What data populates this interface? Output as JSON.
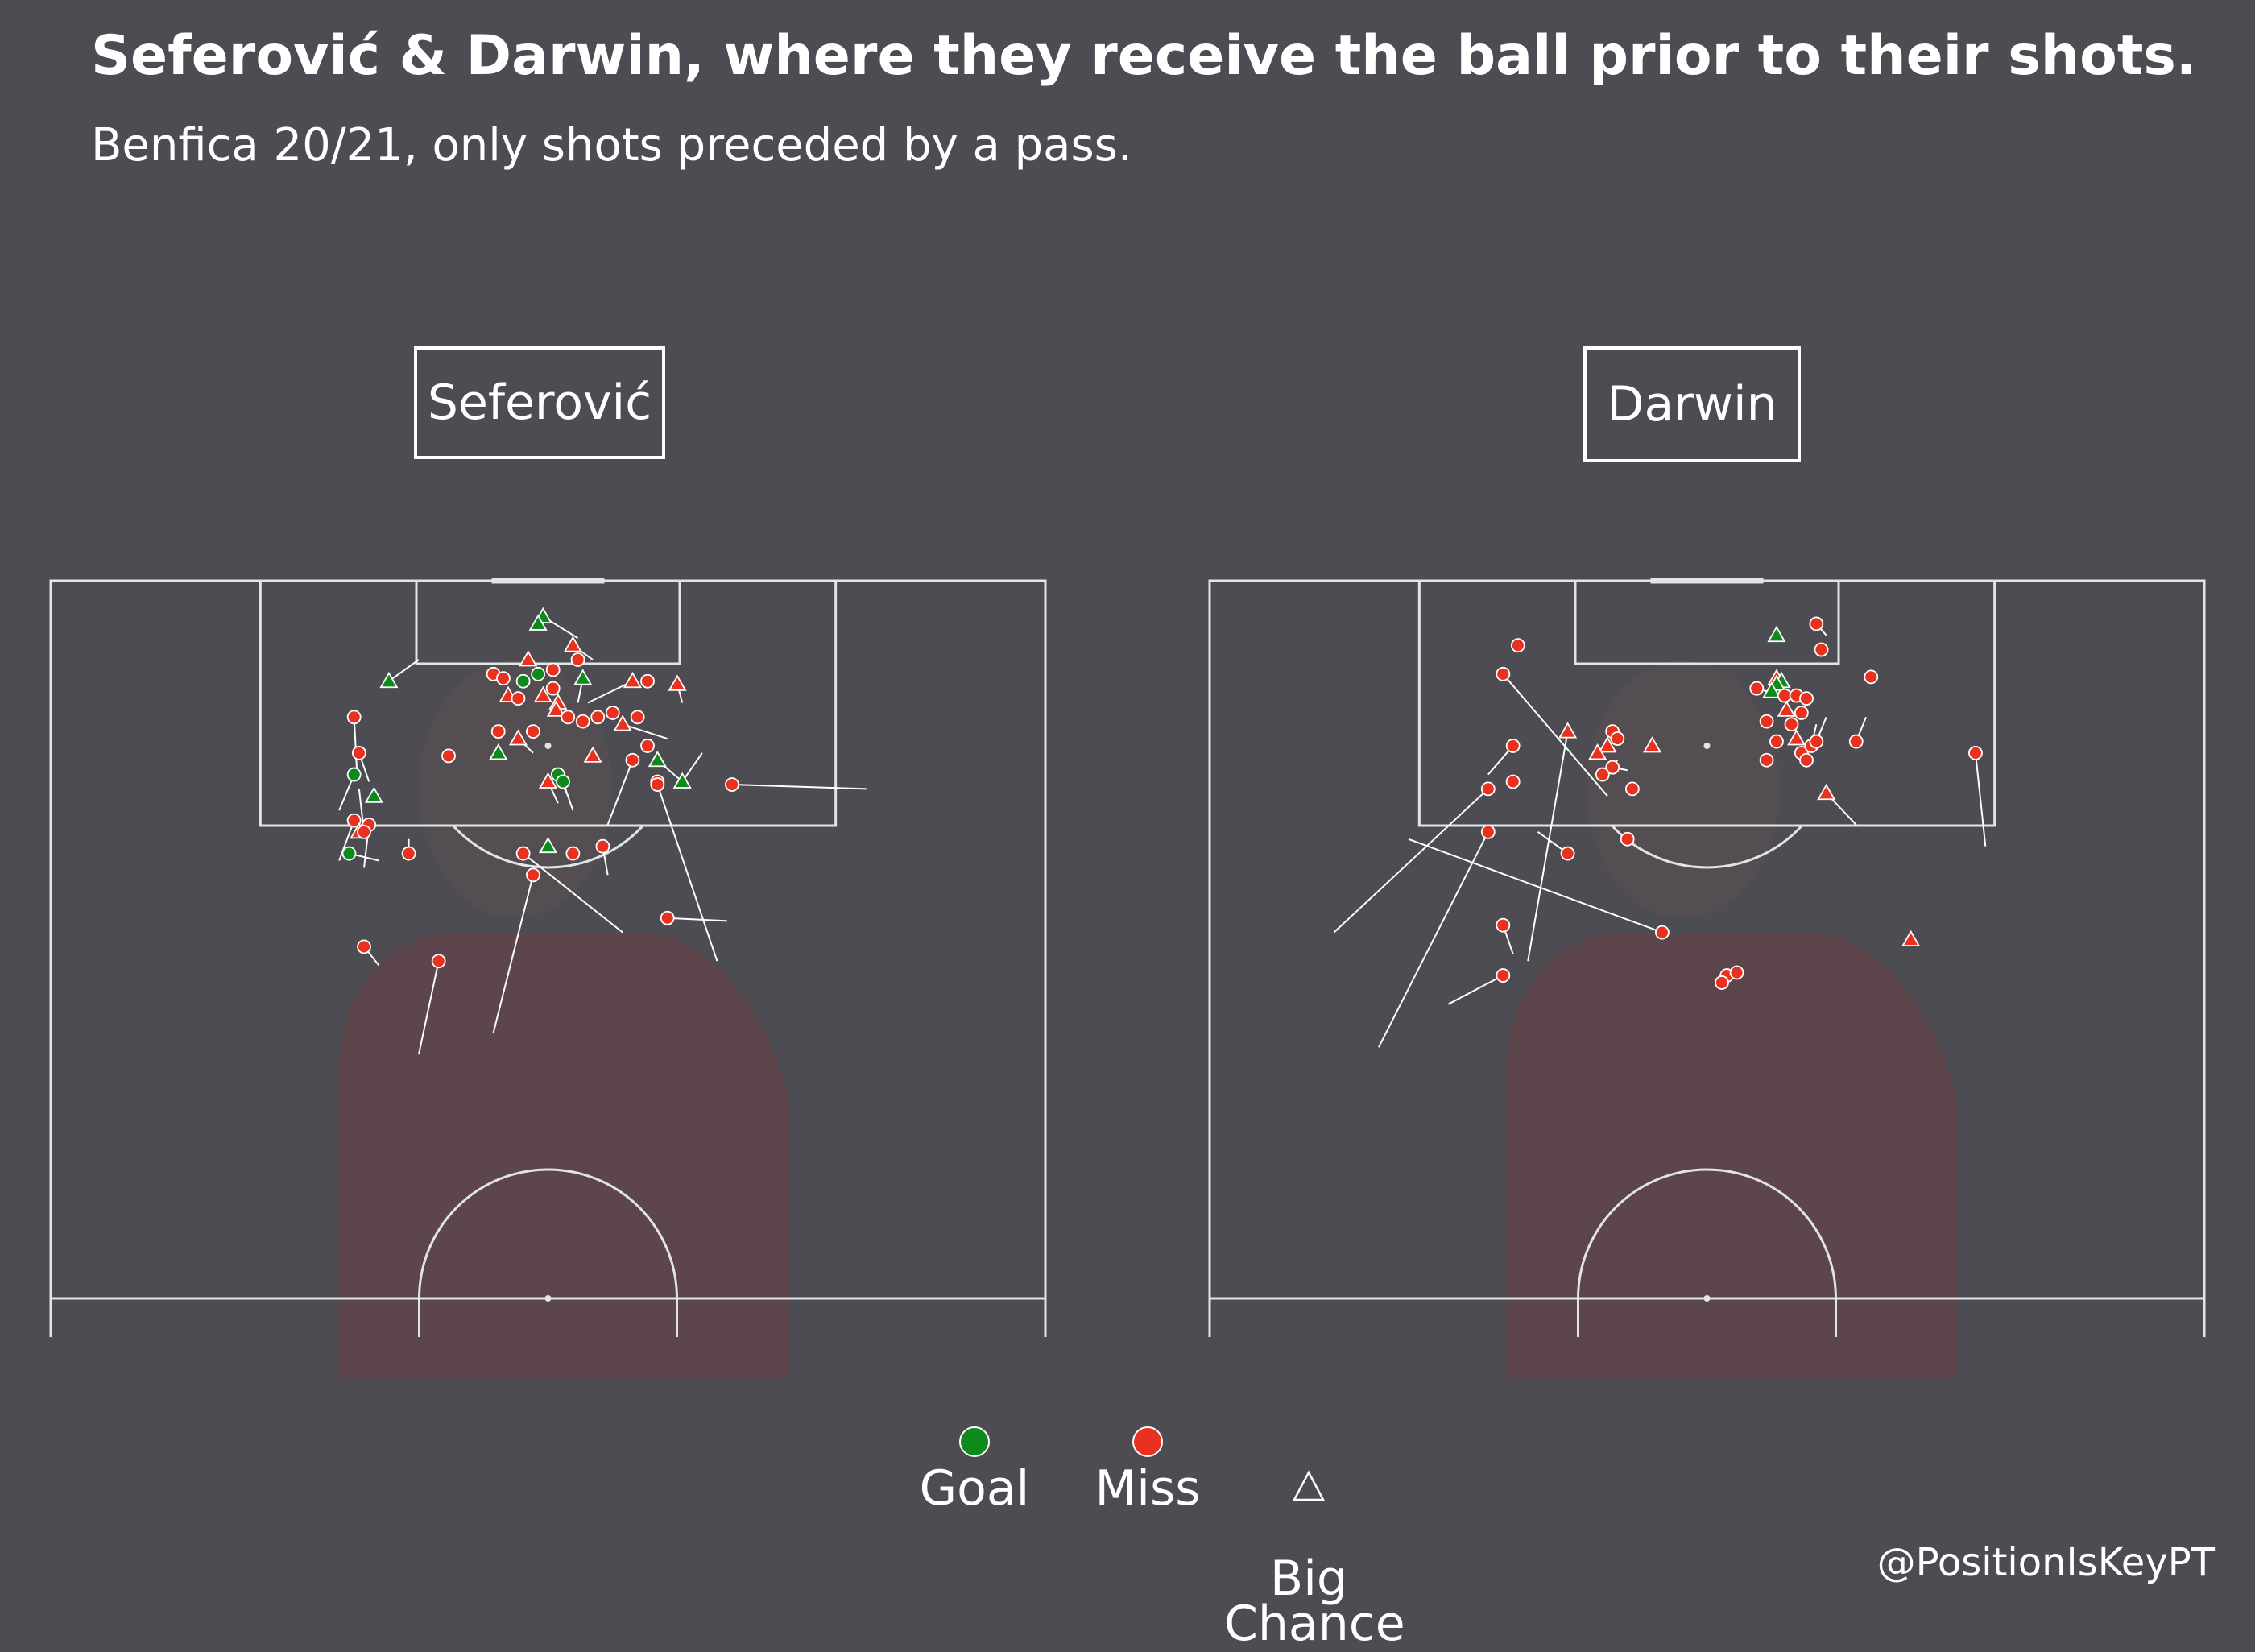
{
  "title": "Seferović & Darwin, where they receive the ball prior to their shots.",
  "subtitle": "Benfica 20/21, only shots preceded by a pass.",
  "footer": "@PositionIsKeyPT",
  "colors": {
    "background": "#4d4c52",
    "pitch_lines": "#dfe6e4",
    "goal": "#0d8a1b",
    "miss": "#e8321f",
    "marker_edge": "#ffffff",
    "shirt": "#6a3f45"
  },
  "legend": [
    {
      "key": "goal",
      "label": "Goal",
      "marker": "circle",
      "color": "#0d8a1b"
    },
    {
      "key": "miss",
      "label": "Miss",
      "marker": "circle",
      "color": "#e8321f"
    },
    {
      "key": "big_chance",
      "label": "Big\nChance",
      "marker": "triangle-outline",
      "color": "#ffffff"
    }
  ],
  "chart_data": [
    {
      "type": "scatter",
      "title": "Seferović",
      "xlim": [
        0,
        100
      ],
      "ylim": [
        50,
        100
      ],
      "points": [
        {
          "x": 49.5,
          "y": 97.5,
          "x2": 53.0,
          "y2": 96.0,
          "outcome": "goal",
          "big_chance": true
        },
        {
          "x": 49.0,
          "y": 97.0,
          "outcome": "goal",
          "big_chance": true
        },
        {
          "x": 52.5,
          "y": 95.5,
          "x2": 54.5,
          "y2": 94.5,
          "outcome": "miss",
          "big_chance": true
        },
        {
          "x": 53.0,
          "y": 94.5,
          "outcome": "miss",
          "big_chance": false
        },
        {
          "x": 34.0,
          "y": 93.0,
          "x2": 37.0,
          "y2": 94.5,
          "outcome": "goal",
          "big_chance": true
        },
        {
          "x": 44.5,
          "y": 93.5,
          "outcome": "miss",
          "big_chance": false
        },
        {
          "x": 45.5,
          "y": 93.2,
          "outcome": "miss",
          "big_chance": false
        },
        {
          "x": 47.5,
          "y": 93.0,
          "outcome": "goal",
          "big_chance": false
        },
        {
          "x": 49.0,
          "y": 93.5,
          "outcome": "goal",
          "big_chance": false
        },
        {
          "x": 50.5,
          "y": 93.8,
          "outcome": "miss",
          "big_chance": false
        },
        {
          "x": 53.5,
          "y": 93.2,
          "x2": 53.0,
          "y2": 91.5,
          "outcome": "goal",
          "big_chance": true
        },
        {
          "x": 48.0,
          "y": 94.5,
          "outcome": "miss",
          "big_chance": true
        },
        {
          "x": 58.5,
          "y": 93.0,
          "x2": 54.0,
          "y2": 91.5,
          "outcome": "miss",
          "big_chance": true
        },
        {
          "x": 60.0,
          "y": 93.0,
          "outcome": "miss",
          "big_chance": false
        },
        {
          "x": 63.0,
          "y": 92.8,
          "x2": 63.5,
          "y2": 91.5,
          "outcome": "miss",
          "big_chance": true
        },
        {
          "x": 46.0,
          "y": 92.0,
          "outcome": "miss",
          "big_chance": true
        },
        {
          "x": 47.0,
          "y": 91.8,
          "outcome": "miss",
          "big_chance": false
        },
        {
          "x": 49.5,
          "y": 92.0,
          "outcome": "miss",
          "big_chance": true
        },
        {
          "x": 50.5,
          "y": 92.5,
          "outcome": "miss",
          "big_chance": false
        },
        {
          "x": 51.0,
          "y": 91.5,
          "outcome": "miss",
          "big_chance": true
        },
        {
          "x": 50.8,
          "y": 91.0,
          "outcome": "miss",
          "big_chance": true
        },
        {
          "x": 52.0,
          "y": 90.5,
          "outcome": "miss",
          "big_chance": false
        },
        {
          "x": 53.5,
          "y": 90.2,
          "outcome": "miss",
          "big_chance": false
        },
        {
          "x": 55.0,
          "y": 90.5,
          "outcome": "miss",
          "big_chance": false
        },
        {
          "x": 56.5,
          "y": 90.8,
          "outcome": "miss",
          "big_chance": false
        },
        {
          "x": 57.5,
          "y": 90.0,
          "x2": 62.0,
          "y2": 89.0,
          "outcome": "miss",
          "big_chance": true
        },
        {
          "x": 59.0,
          "y": 90.5,
          "outcome": "miss",
          "big_chance": false
        },
        {
          "x": 45.0,
          "y": 89.5,
          "outcome": "miss",
          "big_chance": false
        },
        {
          "x": 47.0,
          "y": 89.0,
          "x2": 48.5,
          "y2": 88.0,
          "outcome": "miss",
          "big_chance": true
        },
        {
          "x": 48.5,
          "y": 89.5,
          "outcome": "miss",
          "big_chance": false
        },
        {
          "x": 45.0,
          "y": 88.0,
          "outcome": "goal",
          "big_chance": true
        },
        {
          "x": 60.0,
          "y": 88.5,
          "outcome": "miss",
          "big_chance": false
        },
        {
          "x": 58.5,
          "y": 87.5,
          "x2": 56.0,
          "y2": 83.0,
          "outcome": "miss",
          "big_chance": false
        },
        {
          "x": 30.5,
          "y": 90.5,
          "x2": 30.8,
          "y2": 86.5,
          "outcome": "miss",
          "big_chance": false
        },
        {
          "x": 31.0,
          "y": 88.0,
          "x2": 32.0,
          "y2": 86.0,
          "outcome": "miss",
          "big_chance": false
        },
        {
          "x": 40.0,
          "y": 87.8,
          "outcome": "miss",
          "big_chance": false
        },
        {
          "x": 30.5,
          "y": 86.5,
          "x2": 29.0,
          "y2": 84.0,
          "outcome": "goal",
          "big_chance": false
        },
        {
          "x": 51.0,
          "y": 86.5,
          "x2": 52.0,
          "y2": 85.0,
          "outcome": "goal",
          "big_chance": false
        },
        {
          "x": 51.5,
          "y": 86.0,
          "x2": 52.5,
          "y2": 84.0,
          "outcome": "goal",
          "big_chance": false
        },
        {
          "x": 50.0,
          "y": 86.0,
          "x2": 51.0,
          "y2": 84.5,
          "outcome": "miss",
          "big_chance": true
        },
        {
          "x": 54.5,
          "y": 87.8,
          "outcome": "miss",
          "big_chance": true
        },
        {
          "x": 61.0,
          "y": 87.5,
          "x2": 63.5,
          "y2": 86.0,
          "outcome": "goal",
          "big_chance": true
        },
        {
          "x": 61.0,
          "y": 86.0,
          "outcome": "miss",
          "big_chance": false
        },
        {
          "x": 63.5,
          "y": 86.0,
          "x2": 65.5,
          "y2": 88.0,
          "outcome": "goal",
          "big_chance": true
        },
        {
          "x": 68.5,
          "y": 85.8,
          "x2": 82.0,
          "y2": 85.5,
          "outcome": "miss",
          "big_chance": false
        },
        {
          "x": 61.0,
          "y": 85.8,
          "x2": 67.0,
          "y2": 73.5,
          "outcome": "miss",
          "big_chance": false
        },
        {
          "x": 32.5,
          "y": 85.0,
          "outcome": "goal",
          "big_chance": true
        },
        {
          "x": 30.5,
          "y": 83.3,
          "x2": 29.0,
          "y2": 80.5,
          "outcome": "miss",
          "big_chance": false
        },
        {
          "x": 32.0,
          "y": 83.0,
          "x2": 31.5,
          "y2": 80.0,
          "outcome": "miss",
          "big_chance": false
        },
        {
          "x": 31.0,
          "y": 82.5,
          "outcome": "miss",
          "big_chance": true
        },
        {
          "x": 30.0,
          "y": 81.0,
          "x2": 33.0,
          "y2": 80.5,
          "outcome": "goal",
          "big_chance": false
        },
        {
          "x": 36.0,
          "y": 81.0,
          "x2": 36.0,
          "y2": 82.0,
          "outcome": "miss",
          "big_chance": false
        },
        {
          "x": 50.0,
          "y": 81.5,
          "outcome": "goal",
          "big_chance": true
        },
        {
          "x": 52.5,
          "y": 81.0,
          "outcome": "miss",
          "big_chance": false
        },
        {
          "x": 55.5,
          "y": 81.5,
          "x2": 56.0,
          "y2": 79.5,
          "outcome": "miss",
          "big_chance": false
        },
        {
          "x": 47.5,
          "y": 81.0,
          "x2": 57.5,
          "y2": 75.5,
          "outcome": "miss",
          "big_chance": false
        },
        {
          "x": 48.5,
          "y": 79.5,
          "x2": 44.5,
          "y2": 68.5,
          "outcome": "miss",
          "big_chance": false
        },
        {
          "x": 31.5,
          "y": 82.5,
          "x2": 31.0,
          "y2": 85.5,
          "outcome": "miss",
          "big_chance": false
        },
        {
          "x": 62.0,
          "y": 76.5,
          "x2": 68.0,
          "y2": 76.3,
          "outcome": "miss",
          "big_chance": false
        },
        {
          "x": 39.0,
          "y": 73.5,
          "x2": 37.0,
          "y2": 67.0,
          "outcome": "miss",
          "big_chance": false
        },
        {
          "x": 31.5,
          "y": 74.5,
          "x2": 33.0,
          "y2": 73.2,
          "outcome": "miss",
          "big_chance": false
        }
      ]
    },
    {
      "type": "scatter",
      "title": "Darwin",
      "xlim": [
        0,
        100
      ],
      "ylim": [
        50,
        100
      ],
      "points": [
        {
          "x": 57.0,
          "y": 96.2,
          "outcome": "goal",
          "big_chance": true
        },
        {
          "x": 57.0,
          "y": 93.2,
          "outcome": "miss",
          "big_chance": true
        },
        {
          "x": 57.5,
          "y": 93.0,
          "outcome": "goal",
          "big_chance": true
        },
        {
          "x": 57.0,
          "y": 92.8,
          "outcome": "goal",
          "big_chance": true
        },
        {
          "x": 56.5,
          "y": 92.3,
          "outcome": "goal",
          "big_chance": true
        },
        {
          "x": 57.8,
          "y": 92.0,
          "outcome": "miss",
          "big_chance": false
        },
        {
          "x": 59.0,
          "y": 92.0,
          "outcome": "miss",
          "big_chance": false
        },
        {
          "x": 58.0,
          "y": 91.0,
          "outcome": "miss",
          "big_chance": true
        },
        {
          "x": 60.0,
          "y": 91.8,
          "outcome": "miss",
          "big_chance": false
        },
        {
          "x": 59.5,
          "y": 90.8,
          "outcome": "miss",
          "big_chance": false
        },
        {
          "x": 58.5,
          "y": 90.0,
          "outcome": "miss",
          "big_chance": false
        },
        {
          "x": 59.0,
          "y": 89.0,
          "outcome": "miss",
          "big_chance": true
        },
        {
          "x": 59.5,
          "y": 88.0,
          "outcome": "miss",
          "big_chance": false
        },
        {
          "x": 55.0,
          "y": 92.5,
          "x2": 56.5,
          "y2": 92.2,
          "outcome": "miss",
          "big_chance": false
        },
        {
          "x": 56.0,
          "y": 90.2,
          "outcome": "miss",
          "big_chance": false
        },
        {
          "x": 57.0,
          "y": 88.8,
          "outcome": "miss",
          "big_chance": false
        },
        {
          "x": 56.0,
          "y": 87.5,
          "outcome": "miss",
          "big_chance": false
        },
        {
          "x": 61.0,
          "y": 97.0,
          "x2": 62.0,
          "y2": 96.2,
          "outcome": "miss",
          "big_chance": false
        },
        {
          "x": 61.5,
          "y": 95.2,
          "outcome": "miss",
          "big_chance": false
        },
        {
          "x": 66.5,
          "y": 93.3,
          "outcome": "miss",
          "big_chance": false
        },
        {
          "x": 60.5,
          "y": 88.5,
          "x2": 61.0,
          "y2": 90.0,
          "outcome": "miss",
          "big_chance": false
        },
        {
          "x": 61.0,
          "y": 88.8,
          "x2": 62.0,
          "y2": 90.5,
          "outcome": "miss",
          "big_chance": false
        },
        {
          "x": 60.0,
          "y": 87.5,
          "outcome": "miss",
          "big_chance": false
        },
        {
          "x": 65.0,
          "y": 88.8,
          "x2": 66.0,
          "y2": 90.5,
          "outcome": "miss",
          "big_chance": false
        },
        {
          "x": 31.0,
          "y": 95.5,
          "outcome": "miss",
          "big_chance": false
        },
        {
          "x": 29.5,
          "y": 93.5,
          "x2": 40.0,
          "y2": 85.0,
          "outcome": "miss",
          "big_chance": false
        },
        {
          "x": 40.5,
          "y": 89.5,
          "outcome": "miss",
          "big_chance": false
        },
        {
          "x": 36.0,
          "y": 89.5,
          "x2": 32.0,
          "y2": 73.5,
          "outcome": "miss",
          "big_chance": true
        },
        {
          "x": 40.0,
          "y": 88.5,
          "outcome": "miss",
          "big_chance": true
        },
        {
          "x": 41.0,
          "y": 89.0,
          "outcome": "miss",
          "big_chance": false
        },
        {
          "x": 39.0,
          "y": 88.0,
          "outcome": "miss",
          "big_chance": true
        },
        {
          "x": 40.5,
          "y": 87.0,
          "x2": 42.0,
          "y2": 86.8,
          "outcome": "miss",
          "big_chance": false
        },
        {
          "x": 39.5,
          "y": 86.5,
          "x2": 41.0,
          "y2": 87.5,
          "outcome": "miss",
          "big_chance": false
        },
        {
          "x": 44.5,
          "y": 88.5,
          "outcome": "miss",
          "big_chance": true
        },
        {
          "x": 42.5,
          "y": 85.5,
          "outcome": "miss",
          "big_chance": false
        },
        {
          "x": 30.5,
          "y": 88.5,
          "x2": 28.0,
          "y2": 86.5,
          "outcome": "miss",
          "big_chance": false
        },
        {
          "x": 30.5,
          "y": 86.0,
          "outcome": "miss",
          "big_chance": false
        },
        {
          "x": 28.0,
          "y": 85.5,
          "x2": 12.5,
          "y2": 75.5,
          "outcome": "miss",
          "big_chance": false
        },
        {
          "x": 28.0,
          "y": 82.5,
          "x2": 17.0,
          "y2": 67.5,
          "outcome": "miss",
          "big_chance": false
        },
        {
          "x": 36.0,
          "y": 81.0,
          "x2": 33.0,
          "y2": 82.5,
          "outcome": "miss",
          "big_chance": false
        },
        {
          "x": 42.0,
          "y": 82.0,
          "outcome": "miss",
          "big_chance": false
        },
        {
          "x": 62.0,
          "y": 85.2,
          "x2": 65.0,
          "y2": 83.0,
          "outcome": "miss",
          "big_chance": true
        },
        {
          "x": 77.0,
          "y": 88.0,
          "x2": 78.0,
          "y2": 81.5,
          "outcome": "miss",
          "big_chance": false
        },
        {
          "x": 45.5,
          "y": 75.5,
          "x2": 20.0,
          "y2": 82.0,
          "outcome": "miss",
          "big_chance": false
        },
        {
          "x": 29.5,
          "y": 76.0,
          "x2": 30.5,
          "y2": 74.0,
          "outcome": "miss",
          "big_chance": false
        },
        {
          "x": 29.5,
          "y": 72.5,
          "x2": 24.0,
          "y2": 70.5,
          "outcome": "miss",
          "big_chance": false
        },
        {
          "x": 52.0,
          "y": 72.5,
          "outcome": "miss",
          "big_chance": false
        },
        {
          "x": 53.0,
          "y": 72.7,
          "outcome": "miss",
          "big_chance": false
        },
        {
          "x": 51.5,
          "y": 72.0,
          "outcome": "miss",
          "big_chance": false
        },
        {
          "x": 70.5,
          "y": 75.0,
          "outcome": "miss",
          "big_chance": true
        }
      ]
    }
  ]
}
